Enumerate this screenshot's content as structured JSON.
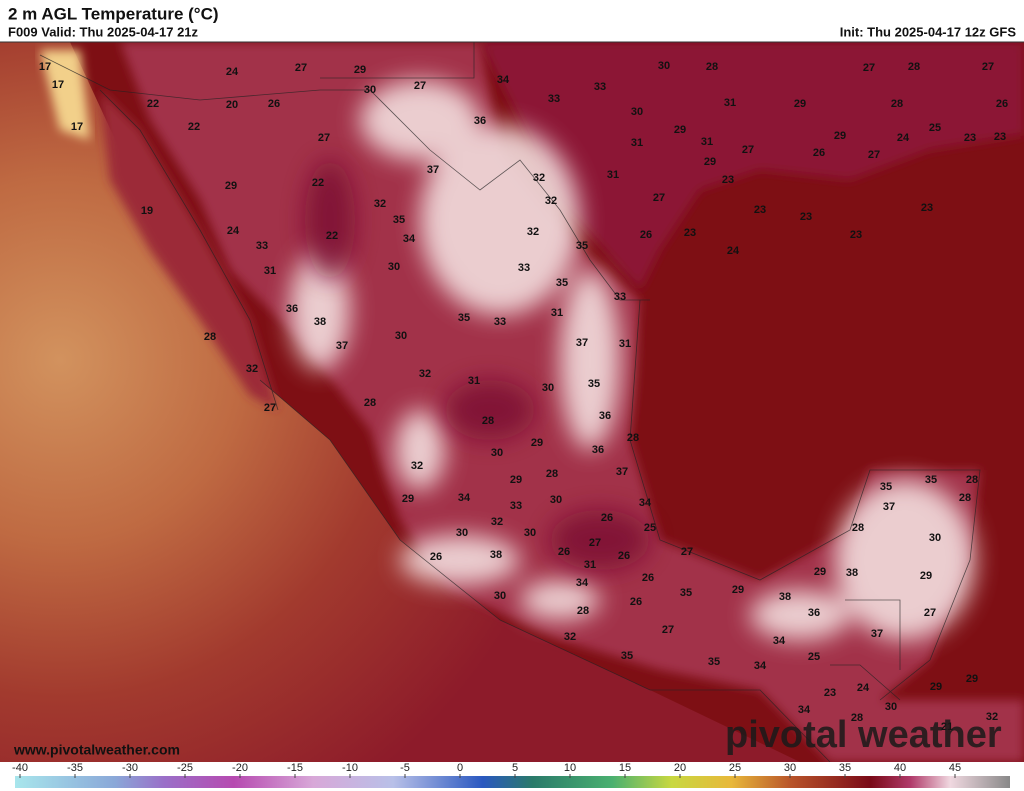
{
  "header": {
    "title": "2 m AGL Temperature (°C)",
    "valid": "F009 Valid: Thu 2025-04-17 21z",
    "init": "Init: Thu 2025-04-17 12z GFS"
  },
  "map": {
    "temperature_labels": [
      17,
      17,
      17,
      24,
      27,
      29,
      27,
      34,
      33,
      33,
      30,
      28,
      27,
      28,
      27,
      22,
      20,
      26,
      30,
      36,
      30,
      31,
      29,
      28,
      26,
      22,
      27,
      31,
      29,
      31,
      27,
      29,
      26,
      27,
      24,
      25,
      23,
      23,
      29,
      23,
      37,
      32,
      31,
      29,
      22,
      32,
      32,
      27,
      23,
      23,
      23,
      19,
      35,
      24,
      34,
      22,
      32,
      35,
      26,
      23,
      23,
      33,
      24,
      30,
      33,
      31,
      35,
      33,
      36,
      38,
      35,
      33,
      31,
      28,
      30,
      37,
      37,
      31,
      32,
      32,
      31,
      30,
      35,
      27,
      28,
      36,
      28,
      28,
      29,
      30,
      36,
      32,
      37,
      29,
      28,
      29,
      34,
      30,
      34,
      35,
      35,
      28,
      28,
      37,
      33,
      26,
      32,
      25,
      28,
      30,
      30,
      27,
      26,
      26,
      27,
      30,
      26,
      38,
      31,
      29,
      38,
      29,
      34,
      26,
      35,
      29,
      38,
      30,
      26,
      36,
      27,
      28,
      27,
      32,
      34,
      37,
      25,
      35,
      35,
      34,
      23,
      24,
      29,
      29,
      30,
      28,
      34,
      21,
      32
    ],
    "watermark": "pivotal weather",
    "website": "www.pivotalweather.com"
  },
  "colorbar": {
    "ticks": [
      -40,
      -35,
      -30,
      -25,
      -20,
      -15,
      -10,
      -5,
      0,
      5,
      10,
      15,
      20,
      25,
      30,
      35,
      40,
      45
    ]
  }
}
